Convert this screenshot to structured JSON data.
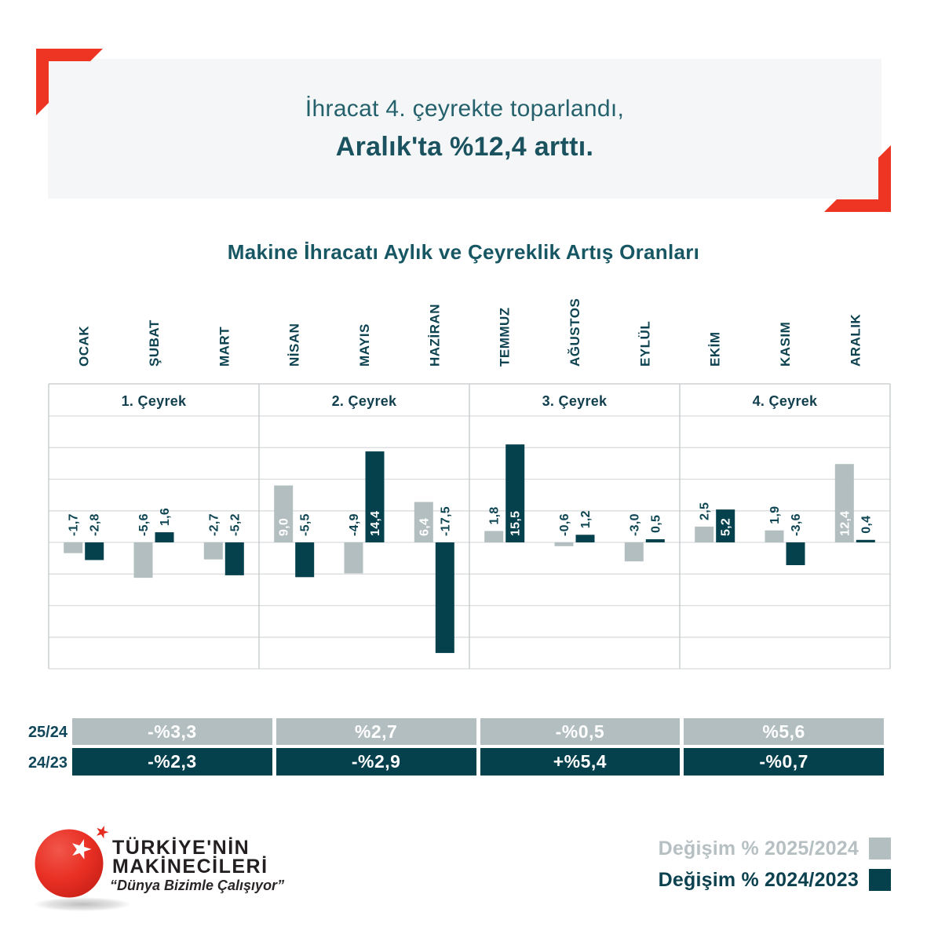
{
  "header": {
    "title_line1": "İhracat 4. çeyrekte toparlandı,",
    "title_line2": "Aralık'ta %12,4 arttı."
  },
  "chart": {
    "title": "Makine İhracatı Aylık ve Çeyreklik Artış Oranları"
  },
  "chart_data": {
    "type": "bar",
    "categories": [
      "OCAK",
      "ŞUBAT",
      "MART",
      "NİSAN",
      "MAYIS",
      "HAZİRAN",
      "TEMMUZ",
      "AĞUSTOS",
      "EYLÜL",
      "EKİM",
      "KASIM",
      "ARALIK"
    ],
    "quarters": [
      "1. Çeyrek",
      "2. Çeyrek",
      "3. Çeyrek",
      "4. Çeyrek"
    ],
    "series": [
      {
        "name": "Değişim % 2025/2024",
        "color": "#b3bec0",
        "values": [
          -1.7,
          -5.6,
          -2.7,
          9.0,
          -4.9,
          6.4,
          1.8,
          -0.6,
          -3.0,
          2.5,
          1.9,
          12.4
        ]
      },
      {
        "name": "Değişim % 2024/2023",
        "color": "#05404d",
        "values": [
          -2.8,
          1.6,
          -5.2,
          -5.5,
          14.4,
          -17.5,
          15.5,
          1.2,
          0.5,
          5.2,
          -3.6,
          0.4
        ]
      }
    ],
    "ylim": [
      -20,
      20
    ],
    "gridline_step": 5,
    "grid": true,
    "legend_position": "bottom-right",
    "value_label_decimal": "comma"
  },
  "quarter_table": {
    "rows": [
      {
        "label": "25/24",
        "values": [
          "-%3,3",
          "%2,7",
          "-%0,5",
          "%5,6"
        ]
      },
      {
        "label": "24/23",
        "values": [
          "-%2,3",
          "-%2,9",
          "+%5,4",
          "-%0,7"
        ]
      }
    ]
  },
  "legend": {
    "items": [
      {
        "label": "Değişim % 2025/2024",
        "color": "#b3bec0"
      },
      {
        "label": "Değişim % 2024/2023",
        "color": "#05404d"
      }
    ]
  },
  "logo": {
    "line1": "TÜRKİYE'NİN",
    "line2": "MAKİNECİLERİ",
    "tagline": "“Dünya Bizimle Çalışıyor”"
  },
  "colors": {
    "accent_red": "#ee3524",
    "dark_teal": "#05404d",
    "light_gray_bar": "#b3bec0",
    "header_bg": "#f4f6f7",
    "title_teal": "#1b525f",
    "gridline": "#dadcdd"
  }
}
